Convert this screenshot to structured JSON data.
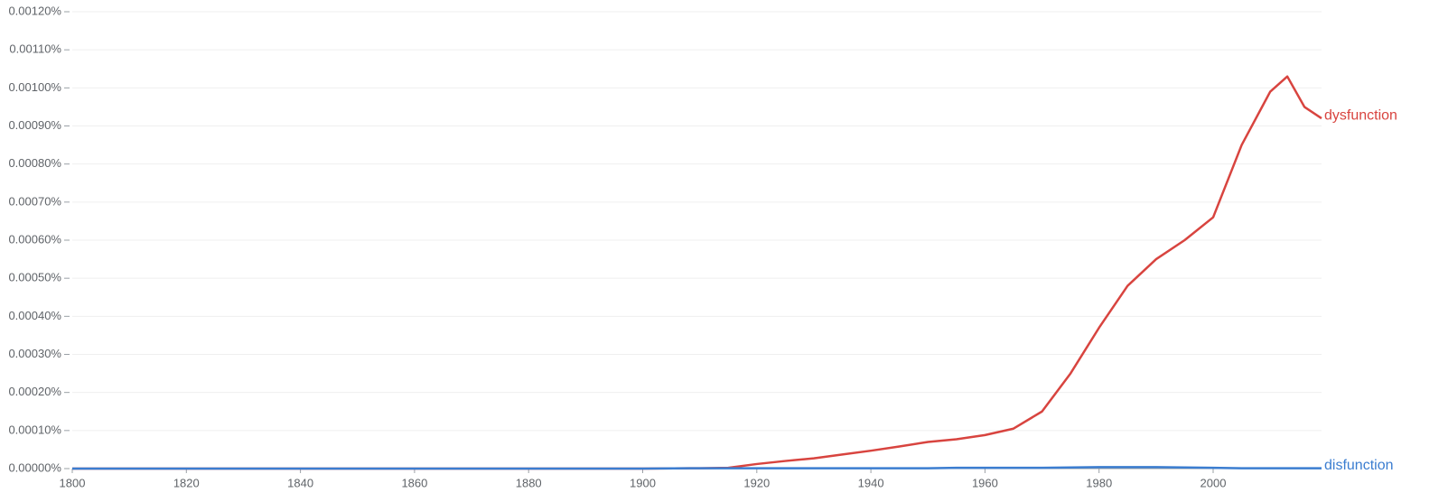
{
  "chart_data": {
    "type": "line",
    "x": [
      1800,
      1820,
      1840,
      1860,
      1880,
      1900,
      1910,
      1915,
      1920,
      1925,
      1930,
      1935,
      1940,
      1945,
      1950,
      1955,
      1960,
      1965,
      1970,
      1975,
      1980,
      1985,
      1990,
      1995,
      2000,
      2005,
      2010,
      2013,
      2016,
      2019
    ],
    "series": [
      {
        "name": "dysfunction",
        "color": "#d8443f",
        "values": [
          0,
          0,
          0,
          0,
          0,
          0,
          1e-06,
          2e-06,
          1.2e-05,
          2e-05,
          2.7e-05,
          3.7e-05,
          4.7e-05,
          5.8e-05,
          7e-05,
          7.7e-05,
          8.8e-05,
          0.000105,
          0.00015,
          0.00025,
          0.00037,
          0.00048,
          0.00055,
          0.0006,
          0.00066,
          0.00085,
          0.00099,
          0.00103,
          0.00095,
          0.00092
        ]
      },
      {
        "name": "disfunction",
        "color": "#3b7dd0",
        "values": [
          0,
          0,
          0,
          0,
          0,
          0,
          1e-06,
          1e-06,
          1e-06,
          1e-06,
          1e-06,
          1e-06,
          1e-06,
          1e-06,
          1e-06,
          2e-06,
          2e-06,
          2e-06,
          2e-06,
          3e-06,
          4e-06,
          4e-06,
          4e-06,
          3e-06,
          2e-06,
          1e-06,
          1e-06,
          1e-06,
          1e-06,
          1e-06
        ]
      }
    ],
    "xlim": [
      1800,
      2019
    ],
    "xticks": [
      1800,
      1820,
      1840,
      1860,
      1880,
      1900,
      1920,
      1940,
      1960,
      1980,
      2000
    ],
    "ylim": [
      0,
      0.0012
    ],
    "yticks": [
      {
        "value": 0,
        "label": "0.00000%"
      },
      {
        "value": 0.0001,
        "label": "0.00010%"
      },
      {
        "value": 0.0002,
        "label": "0.00020%"
      },
      {
        "value": 0.0003,
        "label": "0.00030%"
      },
      {
        "value": 0.0004,
        "label": "0.00040%"
      },
      {
        "value": 0.0005,
        "label": "0.00050%"
      },
      {
        "value": 0.0006,
        "label": "0.00060%"
      },
      {
        "value": 0.0007,
        "label": "0.00070%"
      },
      {
        "value": 0.0008,
        "label": "0.00080%"
      },
      {
        "value": 0.0009,
        "label": "0.00090%"
      },
      {
        "value": 0.001,
        "label": "0.00100%"
      },
      {
        "value": 0.0011,
        "label": "0.00110%"
      },
      {
        "value": 0.0012,
        "label": "0.00120%"
      }
    ],
    "grid": true
  }
}
